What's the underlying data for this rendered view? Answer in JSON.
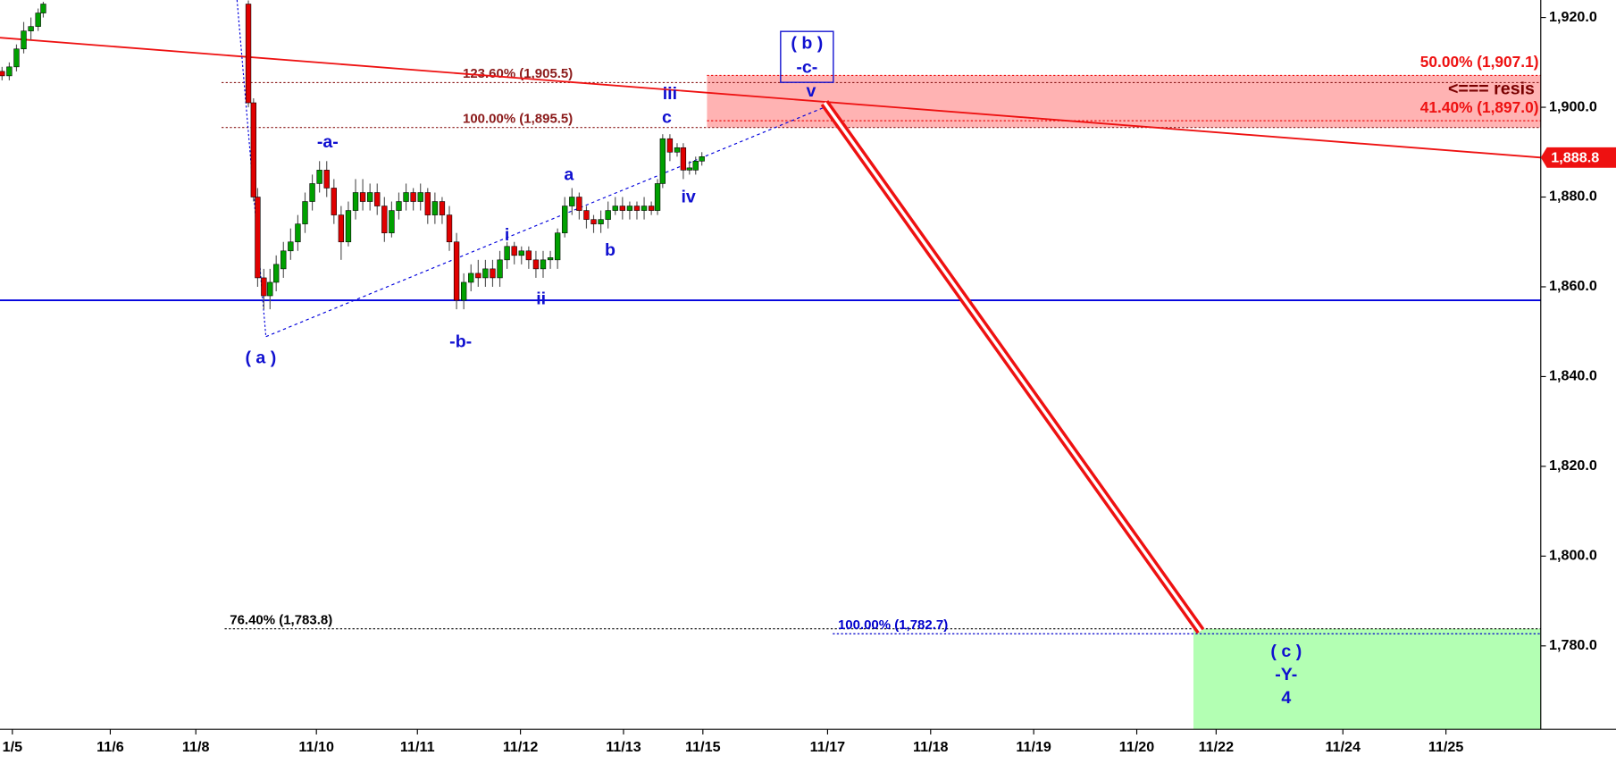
{
  "chart_data": {
    "type": "candlestick",
    "xlim": [
      -0.07,
      14.88
    ],
    "ylim": [
      1761.4,
      1923.9
    ],
    "xticks": [
      {
        "value": 0.05,
        "label": "1/5"
      },
      {
        "value": 1.0,
        "label": "11/6"
      },
      {
        "value": 1.83,
        "label": "11/8"
      },
      {
        "value": 3.0,
        "label": "11/10"
      },
      {
        "value": 3.98,
        "label": "11/11"
      },
      {
        "value": 4.98,
        "label": "11/12"
      },
      {
        "value": 5.98,
        "label": "11/13"
      },
      {
        "value": 6.75,
        "label": "11/15"
      },
      {
        "value": 7.96,
        "label": "11/17"
      },
      {
        "value": 8.96,
        "label": "11/18"
      },
      {
        "value": 9.96,
        "label": "11/19"
      },
      {
        "value": 10.96,
        "label": "11/20"
      },
      {
        "value": 11.73,
        "label": "11/22"
      },
      {
        "value": 12.96,
        "label": "11/24"
      },
      {
        "value": 13.96,
        "label": "11/25"
      }
    ],
    "yticks": [
      {
        "value": 1920,
        "label": "1,920.0"
      },
      {
        "value": 1900,
        "label": "1,900.0"
      },
      {
        "value": 1880,
        "label": "1,880.0"
      },
      {
        "value": 1860,
        "label": "1,860.0"
      },
      {
        "value": 1840,
        "label": "1,840.0"
      },
      {
        "value": 1820,
        "label": "1,820.0"
      },
      {
        "value": 1800,
        "label": "1,800.0"
      },
      {
        "value": 1780,
        "label": "1,780.0"
      }
    ],
    "up_color": "#00a000",
    "down_color": "#e00000",
    "candles": {
      "x": [
        -0.05,
        0.02,
        0.09,
        0.16,
        0.23,
        0.3,
        0.35,
        2.34,
        2.39,
        2.43,
        2.49,
        2.55,
        2.61,
        2.68,
        2.75,
        2.82,
        2.89,
        2.96,
        3.03,
        3.1,
        3.17,
        3.24,
        3.31,
        3.38,
        3.45,
        3.52,
        3.59,
        3.66,
        3.73,
        3.8,
        3.87,
        3.94,
        4.01,
        4.08,
        4.15,
        4.22,
        4.29,
        4.36,
        4.43,
        4.5,
        4.57,
        4.64,
        4.71,
        4.78,
        4.85,
        4.92,
        4.99,
        5.06,
        5.13,
        5.2,
        5.27,
        5.34,
        5.41,
        5.48,
        5.55,
        5.62,
        5.69,
        5.76,
        5.83,
        5.9,
        5.97,
        6.04,
        6.11,
        6.18,
        6.25,
        6.31,
        6.36,
        6.43,
        6.5,
        6.56,
        6.62,
        6.68,
        6.74
      ],
      "open": [
        1908,
        1907,
        1909,
        1913,
        1917,
        1918,
        1921,
        1923,
        1901,
        1880,
        1862,
        1858,
        1861,
        1864,
        1868,
        1870,
        1874,
        1879,
        1883,
        1886,
        1882,
        1876,
        1870,
        1877,
        1881,
        1879,
        1881,
        1878,
        1872,
        1877,
        1879,
        1881,
        1879,
        1881,
        1876,
        1879,
        1876,
        1870,
        1857,
        1861,
        1863,
        1862,
        1864,
        1862,
        1866,
        1869,
        1867,
        1868,
        1866,
        1864,
        1866,
        1866,
        1872,
        1878,
        1880,
        1877,
        1875,
        1874,
        1875,
        1877,
        1878,
        1877,
        1878,
        1877,
        1878,
        1877,
        1883,
        1893,
        1890,
        1891,
        1886,
        1886,
        1888
      ],
      "high": [
        1909,
        1910,
        1914,
        1919,
        1920,
        1922,
        1923.5,
        1923.8,
        1902,
        1882,
        1864,
        1864,
        1867,
        1870,
        1873,
        1876,
        1881,
        1885,
        1888,
        1888,
        1884,
        1878,
        1879,
        1884,
        1884,
        1883,
        1883,
        1880,
        1879,
        1881,
        1883,
        1882,
        1883,
        1882,
        1881,
        1880,
        1878,
        1872,
        1863,
        1865,
        1866,
        1866,
        1866,
        1868,
        1870,
        1870,
        1869,
        1869,
        1868,
        1868,
        1868,
        1873,
        1880,
        1882,
        1881,
        1878,
        1876,
        1877,
        1879,
        1880,
        1880,
        1879,
        1879,
        1880,
        1879,
        1884,
        1894,
        1894,
        1892,
        1892,
        1888,
        1889,
        1890
      ],
      "low": [
        1906,
        1906,
        1908,
        1912,
        1915,
        1917,
        1920,
        1900,
        1879,
        1860,
        1855,
        1855,
        1859,
        1862,
        1866,
        1868,
        1872,
        1877,
        1881,
        1880,
        1874,
        1866,
        1869,
        1875,
        1877,
        1877,
        1876,
        1870,
        1871,
        1875,
        1877,
        1877,
        1877,
        1874,
        1874,
        1874,
        1868,
        1855,
        1855,
        1859,
        1860,
        1860,
        1860,
        1860,
        1864,
        1865,
        1865,
        1864,
        1862,
        1862,
        1864,
        1864,
        1871,
        1876,
        1875,
        1873,
        1872,
        1872,
        1873,
        1876,
        1875,
        1875,
        1875,
        1875,
        1876,
        1876,
        1882,
        1888,
        1889,
        1884,
        1885,
        1885,
        1887
      ],
      "close": [
        1907,
        1909,
        1913,
        1917,
        1918,
        1921,
        1923,
        1901,
        1880,
        1862,
        1858,
        1861,
        1865,
        1868,
        1870,
        1874,
        1879,
        1883,
        1886,
        1882,
        1876,
        1870,
        1877,
        1881,
        1879,
        1881,
        1878,
        1872,
        1877,
        1879,
        1881,
        1879,
        1881,
        1876,
        1879,
        1876,
        1870,
        1857,
        1861,
        1863,
        1862,
        1864,
        1862,
        1866,
        1869,
        1867,
        1868,
        1866,
        1864,
        1866,
        1866.5,
        1872,
        1878,
        1880,
        1877,
        1875,
        1874,
        1875,
        1877,
        1878,
        1877,
        1878,
        1877,
        1878,
        1877,
        1883,
        1893,
        1890,
        1891,
        1886,
        1886.5,
        1888,
        1889
      ]
    },
    "zones": [
      {
        "x0": 6.79,
        "low": 1895.5,
        "high": 1907.1,
        "color": "#ffb3b3"
      },
      {
        "x0": 11.51,
        "low": 1761.4,
        "high": 1783.8,
        "color": "#b3ffb3"
      }
    ],
    "levels": [
      {
        "label": "123.60% (1,905.5)",
        "value": 1905.5,
        "x0": 2.08,
        "label_x": 4.42,
        "anchor": "start",
        "color": "#8b1a1a"
      },
      {
        "label": "100.00% (1,895.5)",
        "value": 1895.5,
        "x0": 2.08,
        "label_x": 4.42,
        "anchor": "start",
        "color": "#8b1a1a"
      },
      {
        "label": "50.00% (1,907.1)",
        "value": 1907.1,
        "x0": 6.79,
        "label_x": 14.86,
        "anchor": "end",
        "color": "#ee1111"
      },
      {
        "label": "41.40% (1,897.0)",
        "value": 1897.0,
        "x0": 6.79,
        "label_x": 14.86,
        "anchor": "end",
        "color": "#ee1111"
      },
      {
        "label": "76.40% (1,783.8)",
        "value": 1783.8,
        "x0": 2.11,
        "label_x": 2.16,
        "anchor": "start",
        "color": "#000000"
      },
      {
        "label": "100.00% (1,782.7)",
        "value": 1782.7,
        "x0": 8.01,
        "label_x": 8.06,
        "anchor": "start",
        "color": "#0000cc"
      }
    ],
    "lines": [
      {
        "x": [
          -0.07,
          14.88
        ],
        "y": [
          1915.5,
          1888.8
        ],
        "color": "#ee1111",
        "style": "solid"
      },
      {
        "x": [
          -0.07,
          14.88
        ],
        "y": [
          1857,
          1857
        ],
        "color": "#0000dd",
        "style": "solid"
      },
      {
        "x": [
          2.51,
          7.93
        ],
        "y": [
          1848.9,
          1900.0
        ],
        "color": "#0000dd",
        "style": "dashed"
      },
      {
        "x": [
          2.23,
          2.51
        ],
        "y": [
          1923.9,
          1848.9
        ],
        "color": "#0000dd",
        "style": "dotted"
      },
      {
        "x": [
          7.93,
          11.58
        ],
        "y": [
          1901,
          1783.3
        ],
        "color": "#ee1111",
        "style": "double"
      }
    ],
    "last_price": {
      "value": 1888.8,
      "label": "1,888.8",
      "color": "#ee1111"
    },
    "annotations": [
      {
        "text": "( a )",
        "x": 2.46,
        "y": 1844.0,
        "color": "#1010d0"
      },
      {
        "text": "-a-",
        "x": 3.11,
        "y": 1892.1,
        "color": "#1010d0"
      },
      {
        "text": "-b-",
        "x": 4.4,
        "y": 1847.6,
        "color": "#1010d0"
      },
      {
        "text": "( b )",
        "x": 7.76,
        "y": 1914.1,
        "color": "#1010d0",
        "box": true
      },
      {
        "text": "-c-",
        "x": 7.76,
        "y": 1908.7,
        "color": "#1010d0"
      },
      {
        "text": "i",
        "x": 4.85,
        "y": 1871.4,
        "color": "#1010d0"
      },
      {
        "text": "ii",
        "x": 5.18,
        "y": 1857.1,
        "color": "#1010d0"
      },
      {
        "text": "iii",
        "x": 6.43,
        "y": 1902.8,
        "color": "#1010d0"
      },
      {
        "text": "iv",
        "x": 6.61,
        "y": 1879.8,
        "color": "#1010d0"
      },
      {
        "text": "v",
        "x": 7.8,
        "y": 1903.4,
        "color": "#1010d0"
      },
      {
        "text": "a",
        "x": 5.45,
        "y": 1884.8,
        "color": "#1010d0"
      },
      {
        "text": "b",
        "x": 5.85,
        "y": 1868.0,
        "color": "#1010d0"
      },
      {
        "text": "c",
        "x": 6.4,
        "y": 1897.5,
        "color": "#1010d0"
      },
      {
        "text": "( c )",
        "x": 12.41,
        "y": 1778.6,
        "color": "#1010d0"
      },
      {
        "text": "-Y-",
        "x": 12.41,
        "y": 1773.4,
        "color": "#1010d0"
      },
      {
        "text": "4",
        "x": 12.41,
        "y": 1768.2,
        "color": "#1010d0"
      },
      {
        "text": "<=== resis",
        "x": 13.98,
        "y": 1903.9,
        "color": "#7a0000",
        "anchor": "start"
      }
    ]
  }
}
